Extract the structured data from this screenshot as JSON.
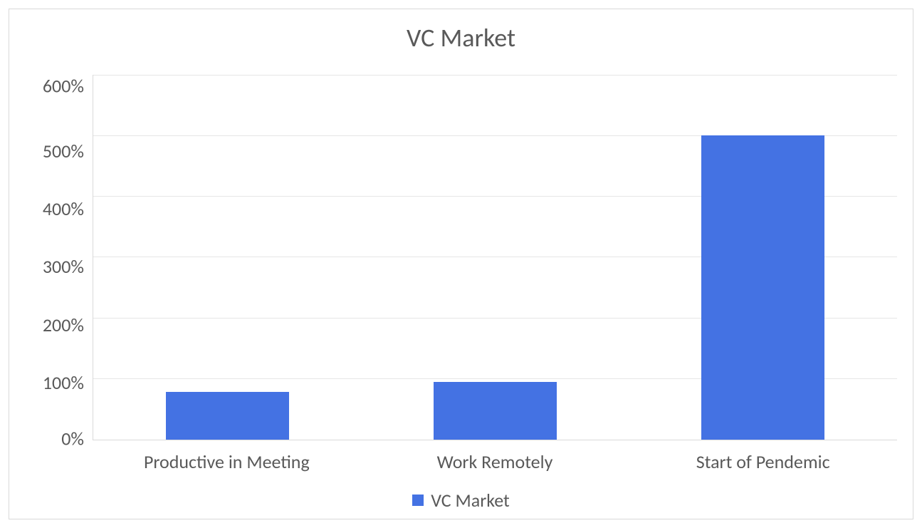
{
  "chart": {
    "type": "bar",
    "title": "VC Market",
    "title_fontsize": 36,
    "title_color": "#595959",
    "categories": [
      "Productive in Meeting",
      "Work Remotely",
      "Start of Pendemic"
    ],
    "values": [
      78,
      95,
      500
    ],
    "bar_colors": [
      "#4472e3",
      "#4472e3",
      "#4472e3"
    ],
    "ylim": [
      0,
      600
    ],
    "ytick_step": 100,
    "ytick_labels": [
      "600%",
      "500%",
      "400%",
      "300%",
      "200%",
      "100%",
      "0%"
    ],
    "axis_label_fontsize": 26,
    "axis_label_color": "#595959",
    "grid_color": "#e6e6e6",
    "border_color": "#d9d9d9",
    "background_color": "#ffffff",
    "bar_width_ratio": 0.46,
    "legend": {
      "label": "VC Market",
      "swatch_color": "#4472e3"
    }
  }
}
